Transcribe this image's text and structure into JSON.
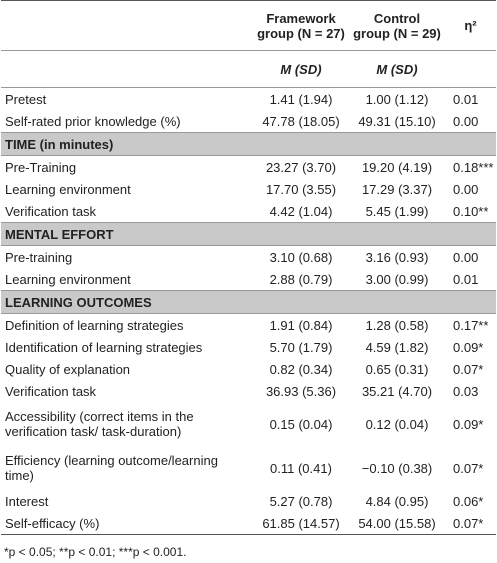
{
  "table": {
    "columns": [
      [
        "Framework",
        "group (N = 27)"
      ],
      [
        "Control",
        "group (N = 29)"
      ],
      [
        "η²"
      ]
    ],
    "subheader": [
      "M (SD)",
      "M (SD)"
    ],
    "rows": [
      [
        "Pretest",
        "1.41 (1.94)",
        "1.00 (1.12)",
        "0.01"
      ],
      [
        "Self-rated prior knowledge (%)",
        "47.78 (18.05)",
        "49.31 (15.10)",
        "0.00"
      ],
      [
        "TIME (in minutes)"
      ],
      [
        "Pre-Training",
        "23.27 (3.70)",
        "19.20 (4.19)",
        "0.18***"
      ],
      [
        "Learning environment",
        "17.70 (3.55)",
        "17.29 (3.37)",
        "0.00"
      ],
      [
        "Verification task",
        "4.42 (1.04)",
        "5.45 (1.99)",
        "0.10**"
      ],
      [
        "MENTAL EFFORT"
      ],
      [
        "Pre-training",
        "3.10 (0.68)",
        "3.16 (0.93)",
        "0.00"
      ],
      [
        "Learning environment",
        "2.88 (0.79)",
        "3.00 (0.99)",
        "0.01"
      ],
      [
        "LEARNING OUTCOMES"
      ],
      [
        "Definition of learning strategies",
        "1.91 (0.84)",
        "1.28 (0.58)",
        "0.17**"
      ],
      [
        "Identification of learning strategies",
        "5.70 (1.79)",
        "4.59 (1.82)",
        "0.09*"
      ],
      [
        "Quality of explanation",
        "0.82 (0.34)",
        "0.65 (0.31)",
        "0.07*"
      ],
      [
        "Verification task",
        "36.93 (5.36)",
        "35.21 (4.70)",
        "0.03"
      ],
      [
        "Accessibility (correct items in the verification task/ task-duration)",
        "0.15 (0.04)",
        "0.12 (0.04)",
        "0.09*"
      ],
      [
        "Efficiency (learning outcome/learning time)",
        "0.11 (0.41)",
        "−0.10 (0.38)",
        "0.07*"
      ],
      [
        "Interest",
        "5.27 (0.78)",
        "4.84 (0.95)",
        "0.06*"
      ],
      [
        "Self-efficacy (%)",
        "61.85 (14.57)",
        "54.00 (15.58)",
        "0.07*"
      ]
    ],
    "footnote": "*p < 0.05; **p < 0.01; ***p < 0.001."
  }
}
